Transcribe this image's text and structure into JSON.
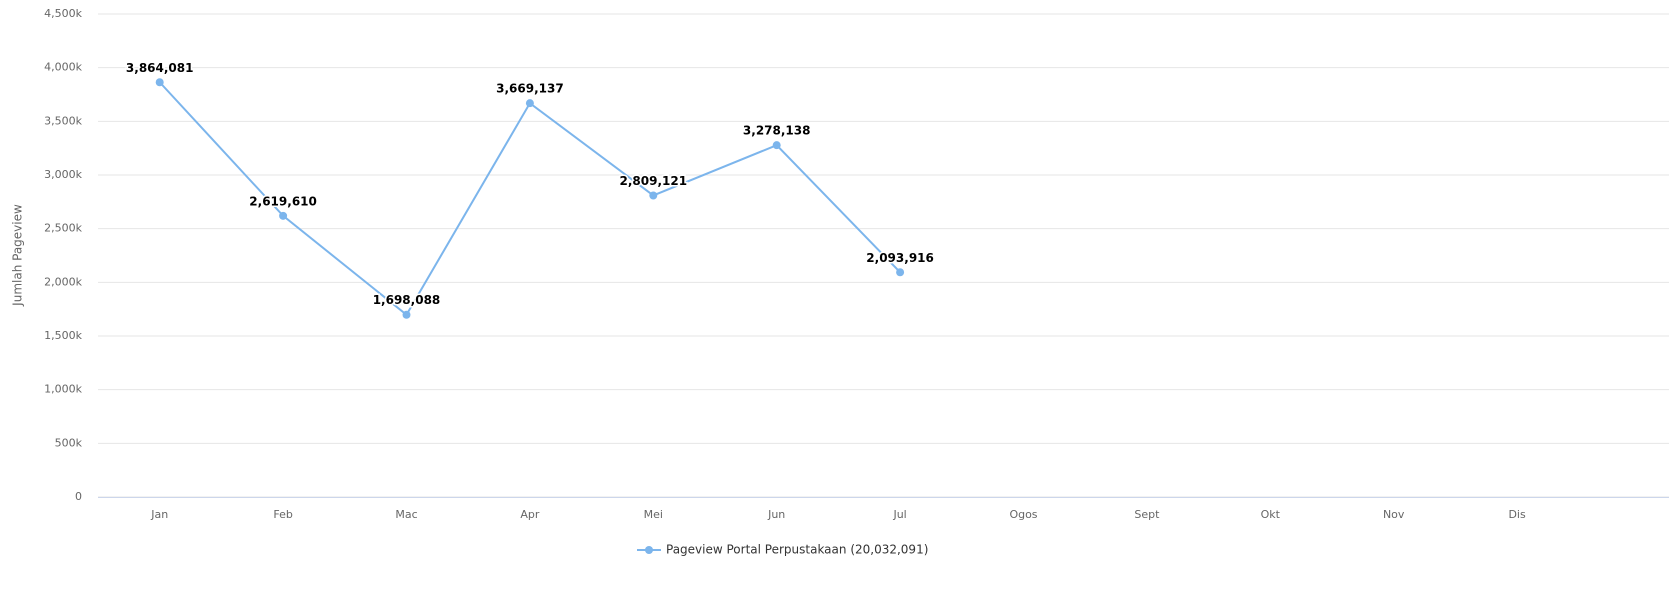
{
  "chart_data": {
    "type": "line",
    "y_label": "Jumlah Pageview",
    "categories": [
      "Jan",
      "Feb",
      "Mac",
      "Apr",
      "Mei",
      "Jun",
      "Jul",
      "Ogos",
      "Sept",
      "Okt",
      "Nov",
      "Dis"
    ],
    "series": [
      {
        "name": "Pageview Portal Perpustakaan (20,032,091)",
        "color": "#7cb5ec",
        "values": [
          3864081,
          2619610,
          1698088,
          3669137,
          2809121,
          3278138,
          2093916,
          null,
          null,
          null,
          null,
          null
        ],
        "value_labels": [
          "3,864,081",
          "2,619,610",
          "1,698,088",
          "3,669,137",
          "2,809,121",
          "3,278,138",
          "2,093,916",
          null,
          null,
          null,
          null,
          null
        ]
      }
    ],
    "ylim": [
      0,
      4500000
    ],
    "yticks": [
      0,
      {
        "value": 500000,
        "label": "500k"
      },
      {
        "value": 1000000,
        "label": "1,000k"
      },
      {
        "value": 1500000,
        "label": "1,500k"
      },
      {
        "value": 2000000,
        "label": "2,000k"
      },
      {
        "value": 2500000,
        "label": "2,500k"
      },
      {
        "value": 3000000,
        "label": "3,000k"
      },
      {
        "value": 3500000,
        "label": "3,500k"
      },
      {
        "value": 4000000,
        "label": "4,000k"
      },
      {
        "value": 4500000,
        "label": "4,500k"
      }
    ],
    "grid": true
  }
}
